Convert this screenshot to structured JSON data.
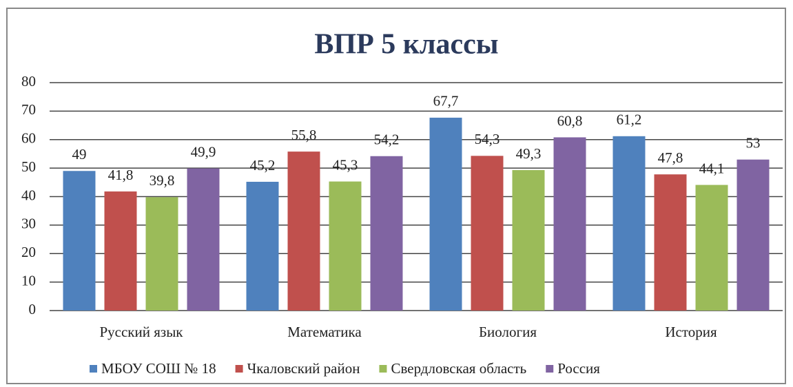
{
  "chart_data": {
    "type": "bar",
    "title": "ВПР 5 классы",
    "categories": [
      "Русский язык",
      "Математика",
      "Биология",
      "История"
    ],
    "ylim": [
      0,
      80
    ],
    "yticks": [
      0,
      10,
      20,
      30,
      40,
      50,
      60,
      70,
      80
    ],
    "grid": true,
    "legend": "bottom",
    "series": [
      {
        "name": "МБОУ СОШ № 18",
        "color": "#4f81bd",
        "values": [
          49,
          45.2,
          67.7,
          61.2
        ],
        "value_labels": [
          "49",
          "45,2",
          "67,7",
          "61,2"
        ]
      },
      {
        "name": "Чкаловский район",
        "color": "#c0504d",
        "values": [
          41.8,
          55.8,
          54.3,
          47.8
        ],
        "value_labels": [
          "41,8",
          "55,8",
          "54,3",
          "47,8"
        ]
      },
      {
        "name": "Свердловская область",
        "color": "#9bbb59",
        "values": [
          39.8,
          45.3,
          49.3,
          44.1
        ],
        "value_labels": [
          "39,8",
          "45,3",
          "49,3",
          "44,1"
        ]
      },
      {
        "name": "Россия",
        "color": "#8064a2",
        "values": [
          49.9,
          54.2,
          60.8,
          53
        ],
        "value_labels": [
          "49,9",
          "54,2",
          "60,8",
          "53"
        ]
      }
    ]
  }
}
